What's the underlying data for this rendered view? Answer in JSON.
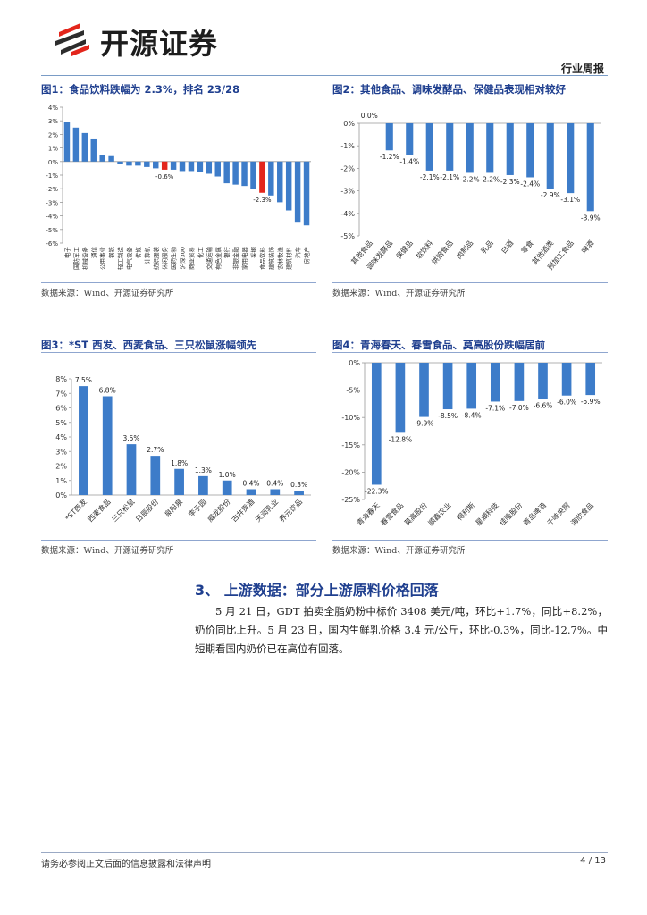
{
  "header": {
    "brand": "开源证券",
    "report_type": "行业周报"
  },
  "colors": {
    "bar_blue": "#3d7cc9",
    "bar_highlight": "#e3261c",
    "title_blue": "#1f3f8f"
  },
  "figures": [
    {
      "title": "图1：食品饮料跌幅为 2.3%，排名 23/28",
      "source": "数据来源：Wind、开源证券研究所",
      "chart_data": {
        "type": "bar",
        "ylim": [
          -6,
          4
        ],
        "yticks": [
          "4%",
          "3%",
          "2%",
          "1%",
          "0%",
          "-1%",
          "-2%",
          "-3%",
          "-4%",
          "-5%",
          "-6%"
        ],
        "categories": [
          "电子",
          "国防军工",
          "机械设备",
          "通信",
          "公用事业",
          "钢铁",
          "轻工制造",
          "电气设备",
          "传媒",
          "计算机",
          "纺织服装",
          "休闲服务",
          "医药生物",
          "沪深300",
          "商业贸易",
          "化工",
          "交通运输",
          "有色金属",
          "银行",
          "非银金融",
          "家用电器",
          "采掘",
          "食品饮料",
          "建筑装饰",
          "农林牧渔",
          "建筑材料",
          "汽车",
          "房地产"
        ],
        "values": [
          2.9,
          2.5,
          2.1,
          1.7,
          0.5,
          0.4,
          -0.2,
          -0.3,
          -0.3,
          -0.4,
          -0.5,
          -0.6,
          -0.6,
          -0.7,
          -0.7,
          -0.8,
          -0.9,
          -1.1,
          -1.6,
          -1.7,
          -1.8,
          -2.0,
          -2.3,
          -2.5,
          -3.0,
          -3.6,
          -4.5,
          -4.7
        ],
        "highlight": [
          11,
          22
        ],
        "data_labels": [
          {
            "index": 11,
            "text": "-0.6%"
          },
          {
            "index": 22,
            "text": "-2.3%"
          }
        ]
      }
    },
    {
      "title": "图2：其他食品、调味发酵品、保健品表现相对较好",
      "source": "数据来源：Wind、开源证券研究所",
      "chart_data": {
        "type": "bar",
        "ylim": [
          -5,
          0
        ],
        "yticks": [
          "0%",
          "-1%",
          "-2%",
          "-3%",
          "-4%",
          "-5%"
        ],
        "categories": [
          "其他食品",
          "调味发酵品",
          "保健品",
          "软饮料",
          "烘焙食品",
          "肉制品",
          "乳品",
          "白酒",
          "零食",
          "其他酒类",
          "预加工食品",
          "啤酒"
        ],
        "values": [
          0.0,
          -1.2,
          -1.4,
          -2.1,
          -2.1,
          -2.2,
          -2.2,
          -2.3,
          -2.4,
          -2.9,
          -3.1,
          -3.9
        ],
        "data_labels": [
          "0.0%",
          "-1.2%",
          "-1.4%",
          "-2.1%",
          "-2.1%",
          "-2.2%",
          "-2.2%",
          "-2.3%",
          "-2.4%",
          "-2.9%",
          "-3.1%",
          "-3.9%"
        ]
      }
    },
    {
      "title": "图3：*ST 西发、西麦食品、三只松鼠涨幅领先",
      "source": "数据来源：Wind、开源证券研究所",
      "chart_data": {
        "type": "bar",
        "ylim": [
          0,
          8
        ],
        "yticks": [
          "8%",
          "7%",
          "6%",
          "5%",
          "4%",
          "3%",
          "2%",
          "1%",
          "0%"
        ],
        "categories": [
          "*ST西发",
          "西麦食品",
          "三只松鼠",
          "日辰股份",
          "泉阳泉",
          "李子园",
          "威龙股份",
          "古井贡酒",
          "天润乳业",
          "养元饮品"
        ],
        "values": [
          7.5,
          6.8,
          3.5,
          2.7,
          1.8,
          1.3,
          1.0,
          0.4,
          0.4,
          0.3
        ],
        "data_labels": [
          "7.5%",
          "6.8%",
          "3.5%",
          "2.7%",
          "1.8%",
          "1.3%",
          "1.0%",
          "0.4%",
          "0.4%",
          "0.3%"
        ]
      }
    },
    {
      "title": "图4：青海春天、春雪食品、莫高股份跌幅居前",
      "source": "数据来源：Wind、开源证券研究所",
      "chart_data": {
        "type": "bar",
        "ylim": [
          -25,
          0
        ],
        "yticks": [
          "0%",
          "-5%",
          "-10%",
          "-15%",
          "-20%",
          "-25%"
        ],
        "categories": [
          "青海春天",
          "春雪食品",
          "莫高股份",
          "顺鑫农业",
          "得利斯",
          "星湖科技",
          "佳隆股份",
          "青岛啤酒",
          "千味央厨",
          "海欣食品"
        ],
        "values": [
          -22.3,
          -12.8,
          -9.9,
          -8.5,
          -8.4,
          -7.1,
          -7.0,
          -6.6,
          -6.0,
          -5.9
        ],
        "data_labels": [
          "-22.3%",
          "-12.8%",
          "-9.9%",
          "-8.5%",
          "-8.4%",
          "-7.1%",
          "-7.0%",
          "-6.6%",
          "-6.0%",
          "-5.9%"
        ]
      }
    }
  ],
  "section": {
    "title": "3、 上游数据：部分上游原料价格回落",
    "paragraph": "5 月 21 日，GDT 拍卖全脂奶粉中标价 3408 美元/吨，环比+1.7%，同比+8.2%，奶价同比上升。5 月 23 日，国内生鲜乳价格 3.4 元/公斤，环比-0.3%，同比-12.7%。中短期看国内奶价已在高位有回落。"
  },
  "footer": {
    "disclaimer": "请务必参阅正文后面的信息披露和法律声明",
    "page": "4 / 13"
  }
}
